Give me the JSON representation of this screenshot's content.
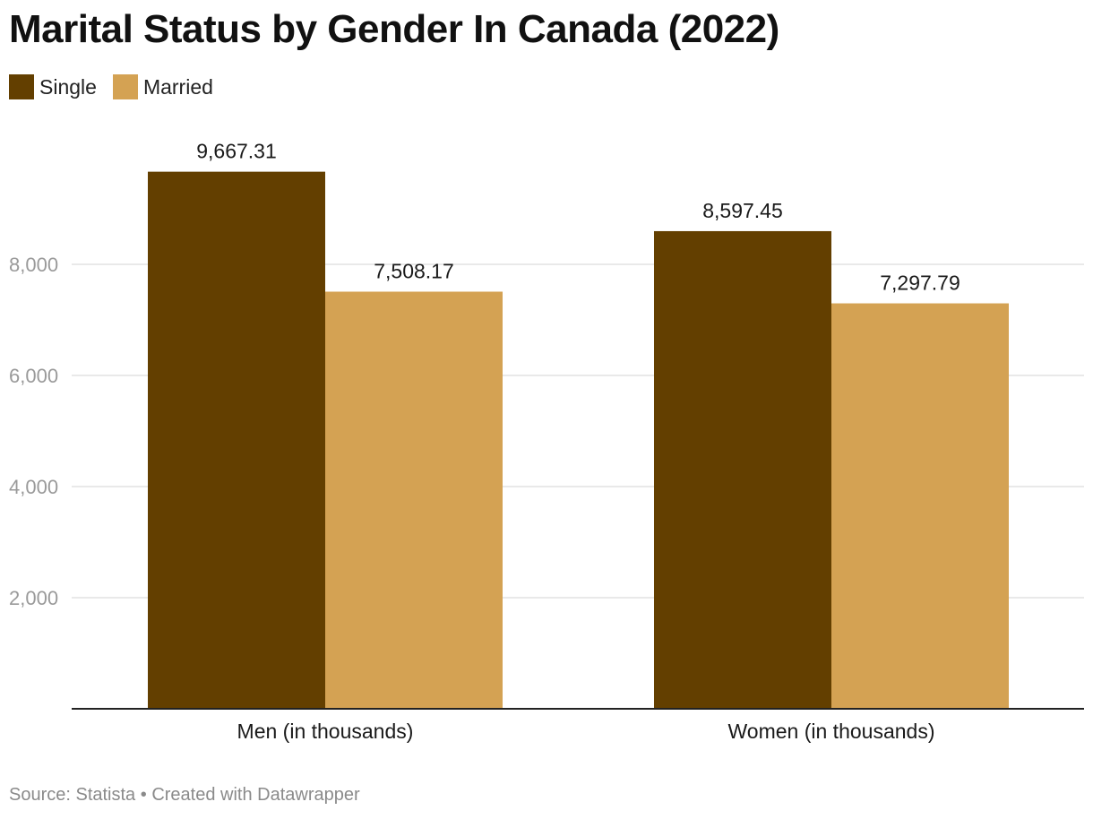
{
  "title": "Marital Status by Gender In Canada (2022)",
  "footer": {
    "source": "Source: Statista",
    "separator": " • ",
    "credit": "Created with Datawrapper"
  },
  "chart_data": {
    "type": "bar",
    "title": "Marital Status by Gender In Canada (2022)",
    "xlabel": "",
    "ylabel": "",
    "categories": [
      "Men (in thousands)",
      "Women (in thousands)"
    ],
    "series": [
      {
        "name": "Single",
        "color": "#633f00",
        "values": [
          9667.31,
          8597.45
        ],
        "labels": [
          "9,667.31",
          "8,597.45"
        ]
      },
      {
        "name": "Married",
        "color": "#d4a253",
        "values": [
          7508.17,
          7297.79
        ],
        "labels": [
          "7,508.17",
          "7,297.79"
        ]
      }
    ],
    "ylim": [
      0,
      10000
    ],
    "yticks": [
      2000,
      4000,
      6000,
      8000
    ],
    "ytick_labels": [
      "2,000",
      "4,000",
      "6,000",
      "8,000"
    ],
    "grid": true,
    "legend_position": "top-left"
  }
}
